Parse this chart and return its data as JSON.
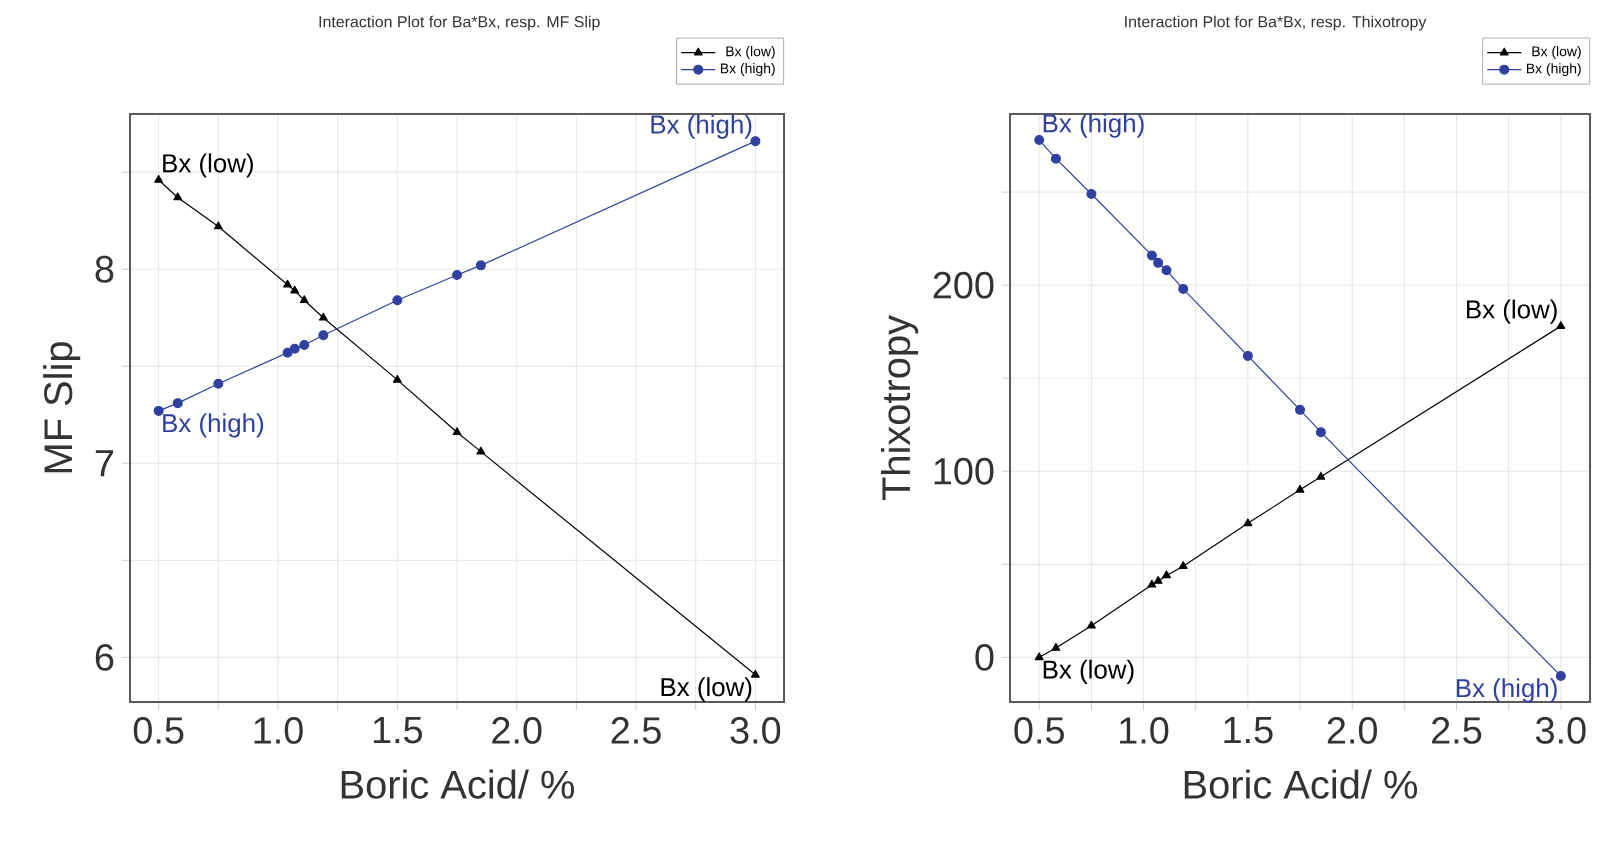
{
  "chart_data": [
    {
      "type": "line",
      "title": "Interaction Plot for Ba*Bx, resp. MF Slip",
      "xlabel": "Boric Acid/ %",
      "ylabel": "MF Slip",
      "xlim": [
        0.38,
        3.12
      ],
      "ylim": [
        5.77,
        8.8
      ],
      "xticks": [
        {
          "value": 0.5,
          "label": "0.5"
        },
        {
          "value": 0.75,
          "label": null
        },
        {
          "value": 1.0,
          "label": "1.0"
        },
        {
          "value": 1.25,
          "label": null
        },
        {
          "value": 1.5,
          "label": "1.5"
        },
        {
          "value": 1.75,
          "label": null
        },
        {
          "value": 2.0,
          "label": "2.0"
        },
        {
          "value": 2.25,
          "label": null
        },
        {
          "value": 2.5,
          "label": "2.5"
        },
        {
          "value": 2.75,
          "label": null
        },
        {
          "value": 3.0,
          "label": "3.0"
        }
      ],
      "yticks": [
        6,
        {
          "value": 6.5,
          "label": null
        },
        7,
        {
          "value": 7.5,
          "label": null
        },
        8,
        {
          "value": 8.5,
          "label": null
        }
      ],
      "grid": true,
      "legend": "top right",
      "x": [
        0.5,
        0.58,
        0.75,
        1.04,
        1.07,
        1.11,
        1.19,
        1.5,
        1.75,
        1.85,
        3.0
      ],
      "series": [
        {
          "name": "Bx (low)",
          "color": "#000000",
          "marker": "triangle",
          "values": [
            8.46,
            8.37,
            8.22,
            7.92,
            7.89,
            7.84,
            7.75,
            7.43,
            7.16,
            7.06,
            5.91
          ]
        },
        {
          "name": "Bx (high)",
          "color": "#3040a0",
          "marker": "circle",
          "values": [
            7.27,
            7.31,
            7.41,
            7.57,
            7.59,
            7.61,
            7.66,
            7.84,
            7.97,
            8.02,
            8.66
          ]
        }
      ]
    },
    {
      "type": "line",
      "title": "Interaction Plot for Ba*Bx, resp. Thixotropy",
      "xlabel": "Boric Acid/ %",
      "ylabel": "Thixotropy",
      "xlim": [
        0.36,
        3.14
      ],
      "ylim": [
        -24,
        292
      ],
      "xticks": [
        {
          "value": 0.5,
          "label": "0.5"
        },
        {
          "value": 0.75,
          "label": null
        },
        {
          "value": 1.0,
          "label": "1.0"
        },
        {
          "value": 1.25,
          "label": null
        },
        {
          "value": 1.5,
          "label": "1.5"
        },
        {
          "value": 1.75,
          "label": null
        },
        {
          "value": 2.0,
          "label": "2.0"
        },
        {
          "value": 2.25,
          "label": null
        },
        {
          "value": 2.5,
          "label": "2.5"
        },
        {
          "value": 2.75,
          "label": null
        },
        {
          "value": 3.0,
          "label": "3.0"
        }
      ],
      "yticks": [
        0,
        {
          "value": 50,
          "label": null
        },
        100,
        {
          "value": 150,
          "label": null
        },
        200,
        {
          "value": 250,
          "label": null
        }
      ],
      "grid": true,
      "legend": "top right",
      "x": [
        0.5,
        0.58,
        0.75,
        1.04,
        1.07,
        1.11,
        1.19,
        1.5,
        1.75,
        1.85,
        3.0
      ],
      "series": [
        {
          "name": "Bx (low)",
          "color": "#000000",
          "marker": "triangle",
          "values": [
            0,
            5,
            17,
            39,
            41,
            44,
            49,
            72,
            90,
            97,
            178
          ]
        },
        {
          "name": "Bx (high)",
          "color": "#3040a0",
          "marker": "circle",
          "values": [
            278,
            268,
            249,
            216,
            212,
            208,
            198,
            162,
            133,
            121,
            -10
          ]
        }
      ]
    }
  ]
}
